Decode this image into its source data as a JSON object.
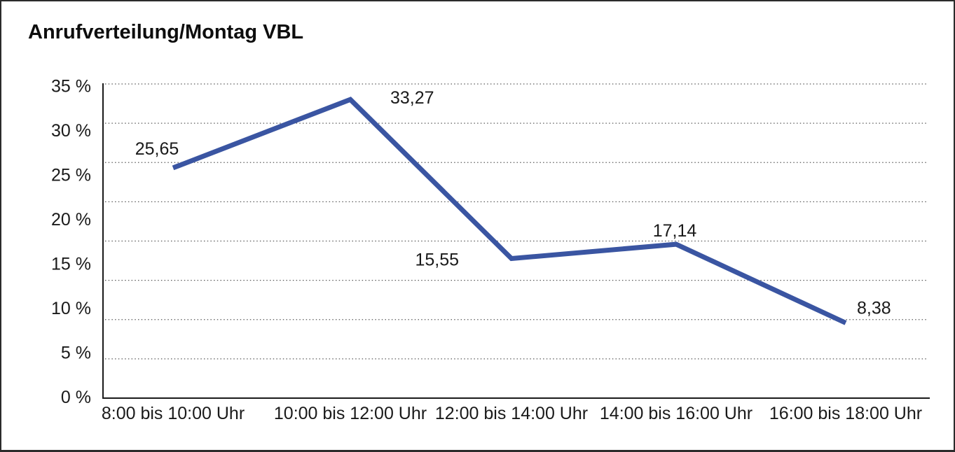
{
  "chart_data": {
    "type": "line",
    "title": "Anrufverteilung/Montag VBL",
    "categories": [
      "8:00 bis 10:00 Uhr",
      "10:00 bis 12:00 Uhr",
      "12:00 bis 14:00 Uhr",
      "14:00 bis 16:00 Uhr",
      "16:00 bis 18:00 Uhr"
    ],
    "values": [
      25.65,
      33.27,
      15.55,
      17.14,
      8.38
    ],
    "value_labels": [
      "25,65",
      "33,27",
      "15,55",
      "17,14",
      "8,38"
    ],
    "xlabel": "",
    "ylabel": "",
    "ylim": [
      0,
      35
    ],
    "y_tick_labels": [
      "0 %",
      "5 %",
      "10 %",
      "15 %",
      "20 %",
      "25 %",
      "30 %",
      "35 %"
    ],
    "y_tick_values": [
      0,
      5,
      10,
      15,
      20,
      25,
      30,
      35
    ],
    "grid": "horizontal-dotted",
    "gridline_count": 8,
    "legend": "none",
    "line_color": "#3A55A2",
    "axis_color": "#1a1a1a",
    "gridline_color": "#5a5a5a",
    "text_color": "#1a1a1a"
  }
}
